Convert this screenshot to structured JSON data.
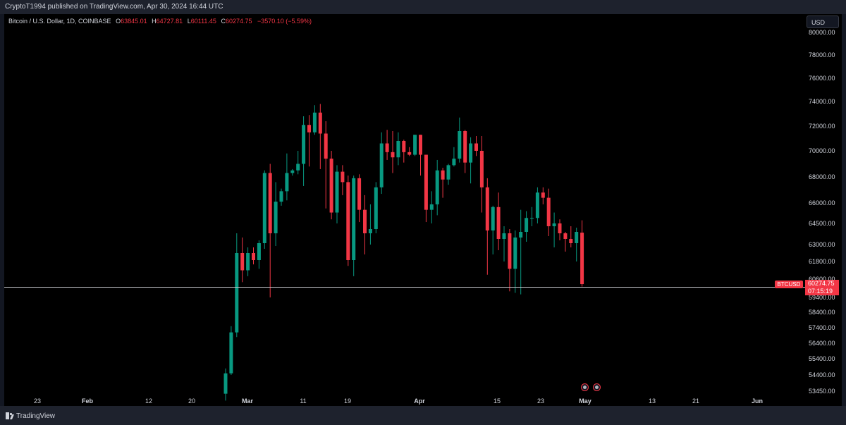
{
  "header": {
    "published_by": "CryptoT1994 published on TradingView.com, Apr 30, 2024 16:44 UTC"
  },
  "symbol": {
    "name": "Bitcoin / U.S. Dollar, 1D, COINBASE",
    "open_label": "O",
    "open": "63845.01",
    "high_label": "H",
    "high": "64727.81",
    "low_label": "L",
    "low": "60111.45",
    "close_label": "C",
    "close": "60274.75",
    "change": "−3570.10 (−5.59%)"
  },
  "currency": "USD",
  "price_axis": [
    "80000.00",
    "78000.00",
    "76000.00",
    "74000.00",
    "72000.00",
    "70000.00",
    "68000.00",
    "66000.00",
    "64500.00",
    "63000.00",
    "61800.00",
    "60600.00",
    "59400.00",
    "58400.00",
    "57400.00",
    "56400.00",
    "55400.00",
    "54400.00",
    "53450.00"
  ],
  "time_axis": [
    {
      "label": "23",
      "major": false
    },
    {
      "label": "Feb",
      "major": true
    },
    {
      "label": "12",
      "major": false
    },
    {
      "label": "20",
      "major": false
    },
    {
      "label": "Mar",
      "major": true
    },
    {
      "label": "11",
      "major": false
    },
    {
      "label": "19",
      "major": false
    },
    {
      "label": "Apr",
      "major": true
    },
    {
      "label": "15",
      "major": false
    },
    {
      "label": "23",
      "major": false
    },
    {
      "label": "May",
      "major": true
    },
    {
      "label": "13",
      "major": false
    },
    {
      "label": "21",
      "major": false
    },
    {
      "label": "Jun",
      "major": true
    }
  ],
  "last_price": {
    "symbol": "BTCUSD",
    "price": "60274.75",
    "countdown": "07:15:19"
  },
  "colors": {
    "up": "#089981",
    "down": "#f23645",
    "background": "#000000",
    "frame": "#131722"
  },
  "footer": {
    "brand": "TradingView"
  },
  "chart_data": {
    "type": "candlestick",
    "price_scale": "log",
    "ylim": [
      53450,
      80000
    ],
    "series": [
      {
        "date": "Feb 26",
        "o": 53300,
        "h": 54800,
        "l": 52900,
        "c": 54500
      },
      {
        "date": "Feb 27",
        "o": 54500,
        "h": 57500,
        "l": 54400,
        "c": 57100
      },
      {
        "date": "Feb 28",
        "o": 57100,
        "h": 63800,
        "l": 56800,
        "c": 62400
      },
      {
        "date": "Feb 29",
        "o": 62400,
        "h": 63500,
        "l": 60400,
        "c": 61200
      },
      {
        "date": "Mar 1",
        "o": 61200,
        "h": 62800,
        "l": 60800,
        "c": 62400
      },
      {
        "date": "Mar 2",
        "o": 62400,
        "h": 62800,
        "l": 61600,
        "c": 61900
      },
      {
        "date": "Mar 3",
        "o": 61900,
        "h": 63300,
        "l": 61300,
        "c": 63100
      },
      {
        "date": "Mar 4",
        "o": 63100,
        "h": 68500,
        "l": 62700,
        "c": 68300
      },
      {
        "date": "Mar 5",
        "o": 68300,
        "h": 69000,
        "l": 59400,
        "c": 63800
      },
      {
        "date": "Mar 6",
        "o": 63800,
        "h": 67600,
        "l": 62900,
        "c": 66100
      },
      {
        "date": "Mar 7",
        "o": 66100,
        "h": 67100,
        "l": 65800,
        "c": 66900
      },
      {
        "date": "Mar 8",
        "o": 66900,
        "h": 69800,
        "l": 66200,
        "c": 68300
      },
      {
        "date": "Mar 9",
        "o": 68300,
        "h": 68600,
        "l": 68100,
        "c": 68500
      },
      {
        "date": "Mar 10",
        "o": 68500,
        "h": 70000,
        "l": 68200,
        "c": 69000
      },
      {
        "date": "Mar 11",
        "o": 69000,
        "h": 72800,
        "l": 67300,
        "c": 72100
      },
      {
        "date": "Mar 12",
        "o": 72100,
        "h": 72900,
        "l": 68800,
        "c": 71500
      },
      {
        "date": "Mar 13",
        "o": 71500,
        "h": 73700,
        "l": 71300,
        "c": 73100
      },
      {
        "date": "Mar 14",
        "o": 73100,
        "h": 73800,
        "l": 68600,
        "c": 71400
      },
      {
        "date": "Mar 15",
        "o": 71400,
        "h": 72400,
        "l": 65600,
        "c": 69400
      },
      {
        "date": "Mar 16",
        "o": 69400,
        "h": 70000,
        "l": 64800,
        "c": 65300
      },
      {
        "date": "Mar 17",
        "o": 65300,
        "h": 68900,
        "l": 64500,
        "c": 68400
      },
      {
        "date": "Mar 18",
        "o": 68400,
        "h": 68900,
        "l": 66600,
        "c": 67600
      },
      {
        "date": "Mar 19",
        "o": 67600,
        "h": 68100,
        "l": 61500,
        "c": 61900
      },
      {
        "date": "Mar 20",
        "o": 61900,
        "h": 68100,
        "l": 60800,
        "c": 67900
      },
      {
        "date": "Mar 21",
        "o": 67900,
        "h": 68200,
        "l": 64600,
        "c": 65500
      },
      {
        "date": "Mar 22",
        "o": 65500,
        "h": 66600,
        "l": 62300,
        "c": 63800
      },
      {
        "date": "Mar 23",
        "o": 63800,
        "h": 65900,
        "l": 63000,
        "c": 64100
      },
      {
        "date": "Mar 24",
        "o": 64100,
        "h": 67600,
        "l": 63800,
        "c": 67200
      },
      {
        "date": "Mar 25",
        "o": 67200,
        "h": 71500,
        "l": 66700,
        "c": 70600
      },
      {
        "date": "Mar 26",
        "o": 70600,
        "h": 71700,
        "l": 69300,
        "c": 69900
      },
      {
        "date": "Mar 27",
        "o": 69900,
        "h": 71600,
        "l": 68300,
        "c": 69500
      },
      {
        "date": "Mar 28",
        "o": 69500,
        "h": 71500,
        "l": 68900,
        "c": 70800
      },
      {
        "date": "Mar 29",
        "o": 70800,
        "h": 70900,
        "l": 69100,
        "c": 69900
      },
      {
        "date": "Mar 30",
        "o": 69900,
        "h": 70300,
        "l": 69600,
        "c": 69700
      },
      {
        "date": "Mar 31",
        "o": 69700,
        "h": 71300,
        "l": 69600,
        "c": 71300
      },
      {
        "date": "Apr 1",
        "o": 71300,
        "h": 71300,
        "l": 68100,
        "c": 69700
      },
      {
        "date": "Apr 2",
        "o": 69700,
        "h": 69700,
        "l": 64600,
        "c": 65500
      },
      {
        "date": "Apr 3",
        "o": 65500,
        "h": 66900,
        "l": 64500,
        "c": 65900
      },
      {
        "date": "Apr 4",
        "o": 65900,
        "h": 69300,
        "l": 65100,
        "c": 68500
      },
      {
        "date": "Apr 5",
        "o": 68500,
        "h": 68700,
        "l": 66400,
        "c": 67800
      },
      {
        "date": "Apr 6",
        "o": 67800,
        "h": 69000,
        "l": 67400,
        "c": 68900
      },
      {
        "date": "Apr 7",
        "o": 68900,
        "h": 70300,
        "l": 68800,
        "c": 69400
      },
      {
        "date": "Apr 8",
        "o": 69400,
        "h": 72700,
        "l": 69100,
        "c": 71600
      },
      {
        "date": "Apr 9",
        "o": 71600,
        "h": 71700,
        "l": 68300,
        "c": 69100
      },
      {
        "date": "Apr 10",
        "o": 69100,
        "h": 71100,
        "l": 67500,
        "c": 70600
      },
      {
        "date": "Apr 11",
        "o": 70600,
        "h": 71200,
        "l": 69600,
        "c": 70000
      },
      {
        "date": "Apr 12",
        "o": 70000,
        "h": 71200,
        "l": 65300,
        "c": 67200
      },
      {
        "date": "Apr 13",
        "o": 67200,
        "h": 67900,
        "l": 60900,
        "c": 64000
      },
      {
        "date": "Apr 14",
        "o": 64000,
        "h": 65800,
        "l": 62300,
        "c": 65700
      },
      {
        "date": "Apr 15",
        "o": 65700,
        "h": 66800,
        "l": 62600,
        "c": 63400
      },
      {
        "date": "Apr 16",
        "o": 63400,
        "h": 64300,
        "l": 61800,
        "c": 63800
      },
      {
        "date": "Apr 17",
        "o": 63800,
        "h": 64100,
        "l": 59800,
        "c": 61300
      },
      {
        "date": "Apr 18",
        "o": 61300,
        "h": 64000,
        "l": 59700,
        "c": 63500
      },
      {
        "date": "Apr 19",
        "o": 63500,
        "h": 65500,
        "l": 59600,
        "c": 63900
      },
      {
        "date": "Apr 20",
        "o": 63900,
        "h": 65400,
        "l": 63200,
        "c": 64900
      },
      {
        "date": "Apr 21",
        "o": 64900,
        "h": 65700,
        "l": 64300,
        "c": 64900
      },
      {
        "date": "Apr 22",
        "o": 64900,
        "h": 67200,
        "l": 64500,
        "c": 66800
      },
      {
        "date": "Apr 23",
        "o": 66800,
        "h": 67200,
        "l": 65900,
        "c": 66400
      },
      {
        "date": "Apr 24",
        "o": 66400,
        "h": 67100,
        "l": 63600,
        "c": 64300
      },
      {
        "date": "Apr 25",
        "o": 64300,
        "h": 65300,
        "l": 62800,
        "c": 64500
      },
      {
        "date": "Apr 26",
        "o": 64500,
        "h": 64800,
        "l": 63300,
        "c": 63800
      },
      {
        "date": "Apr 27",
        "o": 63800,
        "h": 63900,
        "l": 62500,
        "c": 63400
      },
      {
        "date": "Apr 28",
        "o": 63400,
        "h": 64300,
        "l": 62800,
        "c": 63100
      },
      {
        "date": "Apr 29",
        "o": 63100,
        "h": 64200,
        "l": 61800,
        "c": 63900
      },
      {
        "date": "Apr 30",
        "o": 63845.01,
        "h": 64727.81,
        "l": 60111.45,
        "c": 60274.75
      }
    ]
  }
}
